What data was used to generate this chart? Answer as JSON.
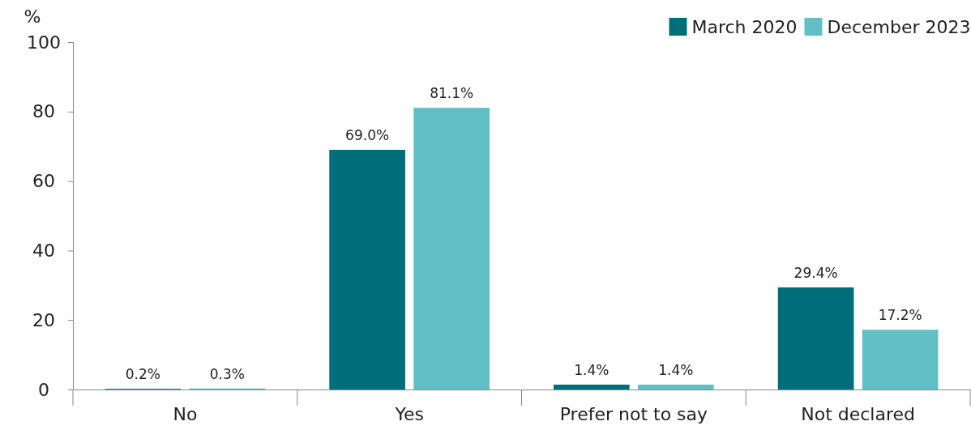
{
  "chart_data": {
    "type": "bar",
    "ylabel": "%",
    "categories": [
      "No",
      "Yes",
      "Prefer not to say",
      "Not declared"
    ],
    "series": [
      {
        "name": "March 2020",
        "color": "#006d7a",
        "values": [
          0.2,
          69.0,
          1.4,
          29.4
        ],
        "value_labels": [
          "0.2%",
          "69.0%",
          "1.4%",
          "29.4%"
        ]
      },
      {
        "name": "December 2023",
        "color": "#5fbfc4",
        "values": [
          0.3,
          81.1,
          1.4,
          17.2
        ],
        "value_labels": [
          "0.3%",
          "81.1%",
          "1.4%",
          "17.2%"
        ]
      }
    ],
    "ylim": [
      0,
      100
    ],
    "yticks": [
      0,
      20,
      40,
      60,
      80,
      100
    ],
    "grid": false,
    "legend": "top right"
  }
}
